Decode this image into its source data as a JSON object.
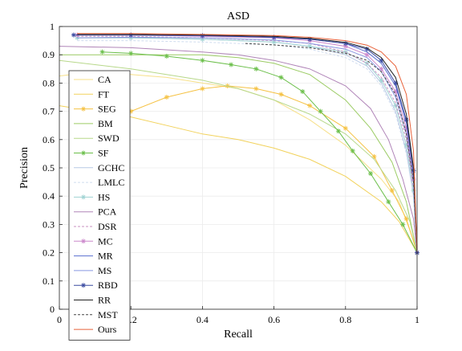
{
  "chart_data": {
    "type": "line",
    "title": "ASD",
    "xlabel": "Recall",
    "ylabel": "Precision",
    "xlim": [
      0,
      1
    ],
    "ylim": [
      0,
      1
    ],
    "xticks": [
      "0",
      "0.2",
      "0.4",
      "0.6",
      "0.8",
      "1"
    ],
    "yticks": [
      "0",
      "0.1",
      "0.2",
      "0.3",
      "0.4",
      "0.5",
      "0.6",
      "0.7",
      "0.8",
      "0.9",
      "1"
    ],
    "grid": true,
    "legend_position": "left",
    "series": [
      {
        "name": "CA",
        "color": "#f7e08a",
        "marker": "none",
        "points": [
          [
            0,
            0.825
          ],
          [
            0.1,
            0.84
          ],
          [
            0.2,
            0.83
          ],
          [
            0.3,
            0.82
          ],
          [
            0.4,
            0.8
          ],
          [
            0.5,
            0.78
          ],
          [
            0.6,
            0.74
          ],
          [
            0.7,
            0.67
          ],
          [
            0.8,
            0.58
          ],
          [
            0.9,
            0.46
          ],
          [
            0.95,
            0.38
          ],
          [
            1,
            0.21
          ]
        ]
      },
      {
        "name": "FT",
        "color": "#f2d25c",
        "marker": "none",
        "points": [
          [
            0,
            0.72
          ],
          [
            0.1,
            0.7
          ],
          [
            0.2,
            0.68
          ],
          [
            0.3,
            0.65
          ],
          [
            0.4,
            0.62
          ],
          [
            0.5,
            0.6
          ],
          [
            0.6,
            0.57
          ],
          [
            0.7,
            0.53
          ],
          [
            0.8,
            0.47
          ],
          [
            0.9,
            0.38
          ],
          [
            0.95,
            0.31
          ],
          [
            1,
            0.2
          ]
        ]
      },
      {
        "name": "SEG",
        "color": "#f5c244",
        "marker": "star",
        "points": [
          [
            0.1,
            0.67
          ],
          [
            0.2,
            0.7
          ],
          [
            0.3,
            0.75
          ],
          [
            0.4,
            0.78
          ],
          [
            0.47,
            0.79
          ],
          [
            0.55,
            0.78
          ],
          [
            0.62,
            0.76
          ],
          [
            0.7,
            0.72
          ],
          [
            0.8,
            0.64
          ],
          [
            0.88,
            0.54
          ],
          [
            0.93,
            0.42
          ],
          [
            0.97,
            0.32
          ],
          [
            1,
            0.2
          ]
        ]
      },
      {
        "name": "BM",
        "color": "#9ccc65",
        "marker": "none",
        "points": [
          [
            0,
            0.9
          ],
          [
            0.2,
            0.9
          ],
          [
            0.4,
            0.9
          ],
          [
            0.5,
            0.89
          ],
          [
            0.6,
            0.87
          ],
          [
            0.7,
            0.83
          ],
          [
            0.8,
            0.74
          ],
          [
            0.87,
            0.64
          ],
          [
            0.93,
            0.52
          ],
          [
            0.97,
            0.38
          ],
          [
            1,
            0.2
          ]
        ]
      },
      {
        "name": "SWD",
        "color": "#b7d88a",
        "marker": "none",
        "points": [
          [
            0,
            0.88
          ],
          [
            0.2,
            0.85
          ],
          [
            0.4,
            0.81
          ],
          [
            0.5,
            0.78
          ],
          [
            0.6,
            0.74
          ],
          [
            0.7,
            0.69
          ],
          [
            0.8,
            0.62
          ],
          [
            0.88,
            0.53
          ],
          [
            0.94,
            0.42
          ],
          [
            0.98,
            0.31
          ],
          [
            1,
            0.2
          ]
        ]
      },
      {
        "name": "SF",
        "color": "#6bbf4a",
        "marker": "star",
        "points": [
          [
            0.12,
            0.91
          ],
          [
            0.2,
            0.905
          ],
          [
            0.3,
            0.895
          ],
          [
            0.4,
            0.88
          ],
          [
            0.48,
            0.865
          ],
          [
            0.55,
            0.85
          ],
          [
            0.62,
            0.82
          ],
          [
            0.68,
            0.77
          ],
          [
            0.73,
            0.7
          ],
          [
            0.78,
            0.63
          ],
          [
            0.82,
            0.56
          ],
          [
            0.87,
            0.48
          ],
          [
            0.92,
            0.38
          ],
          [
            0.96,
            0.3
          ],
          [
            1,
            0.2
          ]
        ]
      },
      {
        "name": "GCHC",
        "color": "#b7c9e5",
        "marker": "none",
        "points": [
          [
            0.05,
            0.96
          ],
          [
            0.2,
            0.96
          ],
          [
            0.4,
            0.955
          ],
          [
            0.6,
            0.945
          ],
          [
            0.7,
            0.93
          ],
          [
            0.8,
            0.9
          ],
          [
            0.86,
            0.86
          ],
          [
            0.9,
            0.8
          ],
          [
            0.94,
            0.7
          ],
          [
            0.97,
            0.56
          ],
          [
            0.99,
            0.4
          ],
          [
            1,
            0.2
          ]
        ]
      },
      {
        "name": "LMLC",
        "color": "#d0dcef",
        "marker": "none",
        "points": [
          [
            0.05,
            0.95
          ],
          [
            0.2,
            0.95
          ],
          [
            0.4,
            0.945
          ],
          [
            0.6,
            0.935
          ],
          [
            0.7,
            0.92
          ],
          [
            0.8,
            0.89
          ],
          [
            0.86,
            0.85
          ],
          [
            0.9,
            0.79
          ],
          [
            0.94,
            0.69
          ],
          [
            0.97,
            0.55
          ],
          [
            0.99,
            0.4
          ],
          [
            1,
            0.2
          ]
        ]
      },
      {
        "name": "HS",
        "color": "#9fd3d3",
        "marker": "star",
        "points": [
          [
            0.05,
            0.96
          ],
          [
            0.2,
            0.96
          ],
          [
            0.4,
            0.955
          ],
          [
            0.6,
            0.945
          ],
          [
            0.7,
            0.93
          ],
          [
            0.8,
            0.91
          ],
          [
            0.86,
            0.87
          ],
          [
            0.9,
            0.81
          ],
          [
            0.94,
            0.72
          ],
          [
            0.97,
            0.58
          ],
          [
            0.99,
            0.42
          ],
          [
            1,
            0.2
          ]
        ]
      },
      {
        "name": "PCA",
        "color": "#b085b8",
        "marker": "none",
        "points": [
          [
            0,
            0.93
          ],
          [
            0.2,
            0.925
          ],
          [
            0.4,
            0.91
          ],
          [
            0.5,
            0.9
          ],
          [
            0.6,
            0.88
          ],
          [
            0.7,
            0.85
          ],
          [
            0.8,
            0.79
          ],
          [
            0.87,
            0.71
          ],
          [
            0.92,
            0.6
          ],
          [
            0.96,
            0.46
          ],
          [
            0.99,
            0.32
          ],
          [
            1,
            0.2
          ]
        ]
      },
      {
        "name": "DSR",
        "color": "#c890c0",
        "marker": "none",
        "points": [
          [
            0.05,
            0.965
          ],
          [
            0.2,
            0.965
          ],
          [
            0.4,
            0.96
          ],
          [
            0.6,
            0.95
          ],
          [
            0.7,
            0.94
          ],
          [
            0.8,
            0.91
          ],
          [
            0.86,
            0.87
          ],
          [
            0.9,
            0.82
          ],
          [
            0.94,
            0.73
          ],
          [
            0.97,
            0.6
          ],
          [
            0.99,
            0.43
          ],
          [
            1,
            0.2
          ]
        ]
      },
      {
        "name": "MC",
        "color": "#cc88cc",
        "marker": "star",
        "points": [
          [
            0.05,
            0.97
          ],
          [
            0.2,
            0.97
          ],
          [
            0.4,
            0.965
          ],
          [
            0.6,
            0.96
          ],
          [
            0.7,
            0.95
          ],
          [
            0.8,
            0.93
          ],
          [
            0.86,
            0.9
          ],
          [
            0.9,
            0.85
          ],
          [
            0.94,
            0.77
          ],
          [
            0.97,
            0.64
          ],
          [
            0.99,
            0.46
          ],
          [
            1,
            0.2
          ]
        ]
      },
      {
        "name": "MR",
        "color": "#5a6fd0",
        "marker": "none",
        "points": [
          [
            0.05,
            0.97
          ],
          [
            0.2,
            0.97
          ],
          [
            0.4,
            0.968
          ],
          [
            0.6,
            0.962
          ],
          [
            0.7,
            0.955
          ],
          [
            0.8,
            0.94
          ],
          [
            0.86,
            0.91
          ],
          [
            0.9,
            0.87
          ],
          [
            0.94,
            0.79
          ],
          [
            0.97,
            0.66
          ],
          [
            0.99,
            0.48
          ],
          [
            1,
            0.2
          ]
        ]
      },
      {
        "name": "MS",
        "color": "#8896e0",
        "marker": "none",
        "points": [
          [
            0.05,
            0.96
          ],
          [
            0.2,
            0.962
          ],
          [
            0.4,
            0.96
          ],
          [
            0.6,
            0.952
          ],
          [
            0.7,
            0.94
          ],
          [
            0.8,
            0.92
          ],
          [
            0.86,
            0.89
          ],
          [
            0.9,
            0.84
          ],
          [
            0.94,
            0.75
          ],
          [
            0.97,
            0.62
          ],
          [
            0.99,
            0.45
          ],
          [
            1,
            0.2
          ]
        ]
      },
      {
        "name": "RBD",
        "color": "#3a4aa0",
        "marker": "star",
        "points": [
          [
            0.04,
            0.97
          ],
          [
            0.2,
            0.97
          ],
          [
            0.4,
            0.968
          ],
          [
            0.6,
            0.962
          ],
          [
            0.7,
            0.955
          ],
          [
            0.8,
            0.94
          ],
          [
            0.86,
            0.92
          ],
          [
            0.9,
            0.88
          ],
          [
            0.94,
            0.8
          ],
          [
            0.97,
            0.67
          ],
          [
            0.99,
            0.49
          ],
          [
            1,
            0.2
          ]
        ]
      },
      {
        "name": "RR",
        "color": "#222222",
        "marker": "none",
        "points": [
          [
            0.05,
            0.972
          ],
          [
            0.2,
            0.972
          ],
          [
            0.4,
            0.97
          ],
          [
            0.6,
            0.965
          ],
          [
            0.7,
            0.958
          ],
          [
            0.8,
            0.944
          ],
          [
            0.86,
            0.924
          ],
          [
            0.9,
            0.89
          ],
          [
            0.94,
            0.82
          ],
          [
            0.97,
            0.69
          ],
          [
            0.99,
            0.5
          ],
          [
            1,
            0.2
          ]
        ]
      },
      {
        "name": "MST",
        "color": "#444444",
        "marker": "none",
        "points": [
          [
            0.52,
            0.94
          ],
          [
            0.6,
            0.935
          ],
          [
            0.7,
            0.925
          ],
          [
            0.8,
            0.905
          ],
          [
            0.86,
            0.88
          ],
          [
            0.9,
            0.84
          ],
          [
            0.94,
            0.76
          ],
          [
            0.97,
            0.62
          ],
          [
            0.99,
            0.45
          ],
          [
            1,
            0.2
          ]
        ]
      },
      {
        "name": "Ours",
        "color": "#e8623a",
        "marker": "none",
        "points": [
          [
            0.05,
            0.975
          ],
          [
            0.2,
            0.975
          ],
          [
            0.4,
            0.972
          ],
          [
            0.6,
            0.968
          ],
          [
            0.7,
            0.962
          ],
          [
            0.8,
            0.95
          ],
          [
            0.86,
            0.934
          ],
          [
            0.9,
            0.91
          ],
          [
            0.94,
            0.86
          ],
          [
            0.97,
            0.76
          ],
          [
            0.99,
            0.56
          ],
          [
            1,
            0.2
          ]
        ]
      }
    ]
  }
}
